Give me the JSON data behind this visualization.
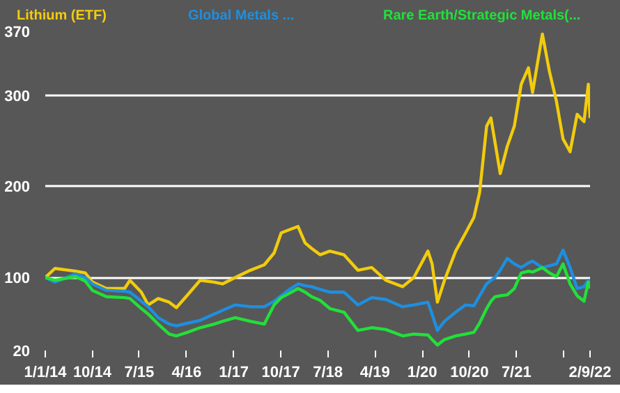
{
  "chart_data": {
    "type": "line",
    "x": [
      "2014-01-01",
      "2014-02-26",
      "2014-06-26",
      "2014-08-22",
      "2014-10-02",
      "2014-12-22",
      "2015-04-07",
      "2015-05-08",
      "2015-07-13",
      "2015-08-22",
      "2015-10-19",
      "2015-12-22",
      "2016-02-02",
      "2016-04-07",
      "2016-06-19",
      "2016-09-08",
      "2016-10-27",
      "2017-01-09",
      "2017-04-07",
      "2017-06-27",
      "2017-08-23",
      "2017-10-03",
      "2017-11-13",
      "2018-01-09",
      "2018-02-19",
      "2018-03-29",
      "2018-05-17",
      "2018-07-13",
      "2018-10-03",
      "2018-12-23",
      "2019-03-13",
      "2019-06-03",
      "2019-09-09",
      "2019-11-13",
      "2020-02-03",
      "2020-02-27",
      "2020-03-29",
      "2020-05-09",
      "2020-07-13",
      "2020-09-09",
      "2020-10-27",
      "2020-11-29",
      "2021-01-09",
      "2021-02-03",
      "2021-02-27",
      "2021-03-29",
      "2021-05-09",
      "2021-06-19",
      "2021-07-29",
      "2021-09-09",
      "2021-10-03",
      "2021-11-29",
      "2022-01-09",
      "2022-02-19",
      "2022-03-29",
      "2022-05-09",
      "2022-06-19",
      "2022-07-29",
      "2022-08-23",
      "2022-09-02"
    ],
    "series": [
      {
        "name": "Lithium (ETF)",
        "color": "#f2cc0c",
        "values": [
          100,
          110,
          107,
          105,
          95,
          88,
          88,
          97,
          84,
          70,
          77,
          73,
          67,
          81,
          97,
          95,
          93,
          100,
          108,
          114,
          127,
          149,
          152,
          156,
          138,
          132,
          125,
          129,
          125,
          108,
          111,
          97,
          90,
          100,
          129,
          115,
          73,
          97,
          129,
          149,
          166,
          193,
          266,
          275,
          248,
          214,
          244,
          266,
          312,
          330,
          303,
          367,
          326,
          293,
          252,
          238,
          279,
          271,
          312,
          275
        ]
      },
      {
        "name": "Global Metals ...",
        "color": "#1e8fe0",
        "values": [
          100,
          95,
          104,
          100,
          93,
          86,
          85,
          84,
          74,
          68,
          56,
          49,
          47,
          50,
          53,
          60,
          64,
          70,
          68,
          68,
          74,
          80,
          86,
          93,
          91,
          90,
          87,
          84,
          84,
          70,
          78,
          76,
          68,
          70,
          73,
          60,
          42,
          52,
          62,
          70,
          69,
          80,
          93,
          97,
          100,
          108,
          121,
          115,
          111,
          116,
          118,
          111,
          113,
          115,
          130,
          111,
          88,
          90,
          97,
          93
        ]
      },
      {
        "name": "Rare Earth/Strategic Metals(...",
        "color": "#22e03a",
        "values": [
          100,
          97,
          101,
          96,
          86,
          79,
          78,
          77,
          66,
          60,
          49,
          38,
          36,
          40,
          45,
          49,
          52,
          56,
          52,
          49,
          70,
          78,
          82,
          88,
          84,
          79,
          75,
          66,
          62,
          42,
          45,
          43,
          36,
          38,
          37,
          32,
          26,
          32,
          36,
          38,
          40,
          50,
          66,
          74,
          79,
          80,
          81,
          88,
          105,
          107,
          106,
          111,
          105,
          101,
          115,
          93,
          80,
          74,
          95,
          88
        ]
      }
    ],
    "xlim": [
      "2014-01-01",
      "2022-09-02"
    ],
    "xticks": [
      {
        "value": "2014-01-01",
        "label": "1/1/14"
      },
      {
        "value": "2014-10-01",
        "label": "10/14"
      },
      {
        "value": "2015-07-01",
        "label": "7/15"
      },
      {
        "value": "2016-04-01",
        "label": "4/16"
      },
      {
        "value": "2017-01-01",
        "label": "1/17"
      },
      {
        "value": "2017-10-01",
        "label": "10/17"
      },
      {
        "value": "2018-07-01",
        "label": "7/18"
      },
      {
        "value": "2019-04-01",
        "label": "4/19"
      },
      {
        "value": "2020-01-01",
        "label": "1/20"
      },
      {
        "value": "2020-10-01",
        "label": "10/20"
      },
      {
        "value": "2021-07-01",
        "label": "7/21"
      },
      {
        "value": "2022-04-01",
        "label": null
      },
      {
        "value": "2022-09-02",
        "label": "2/9/22"
      }
    ],
    "ylim": [
      20,
      370
    ],
    "yticks": [
      20,
      100,
      200,
      300,
      370
    ],
    "grid": "y"
  }
}
